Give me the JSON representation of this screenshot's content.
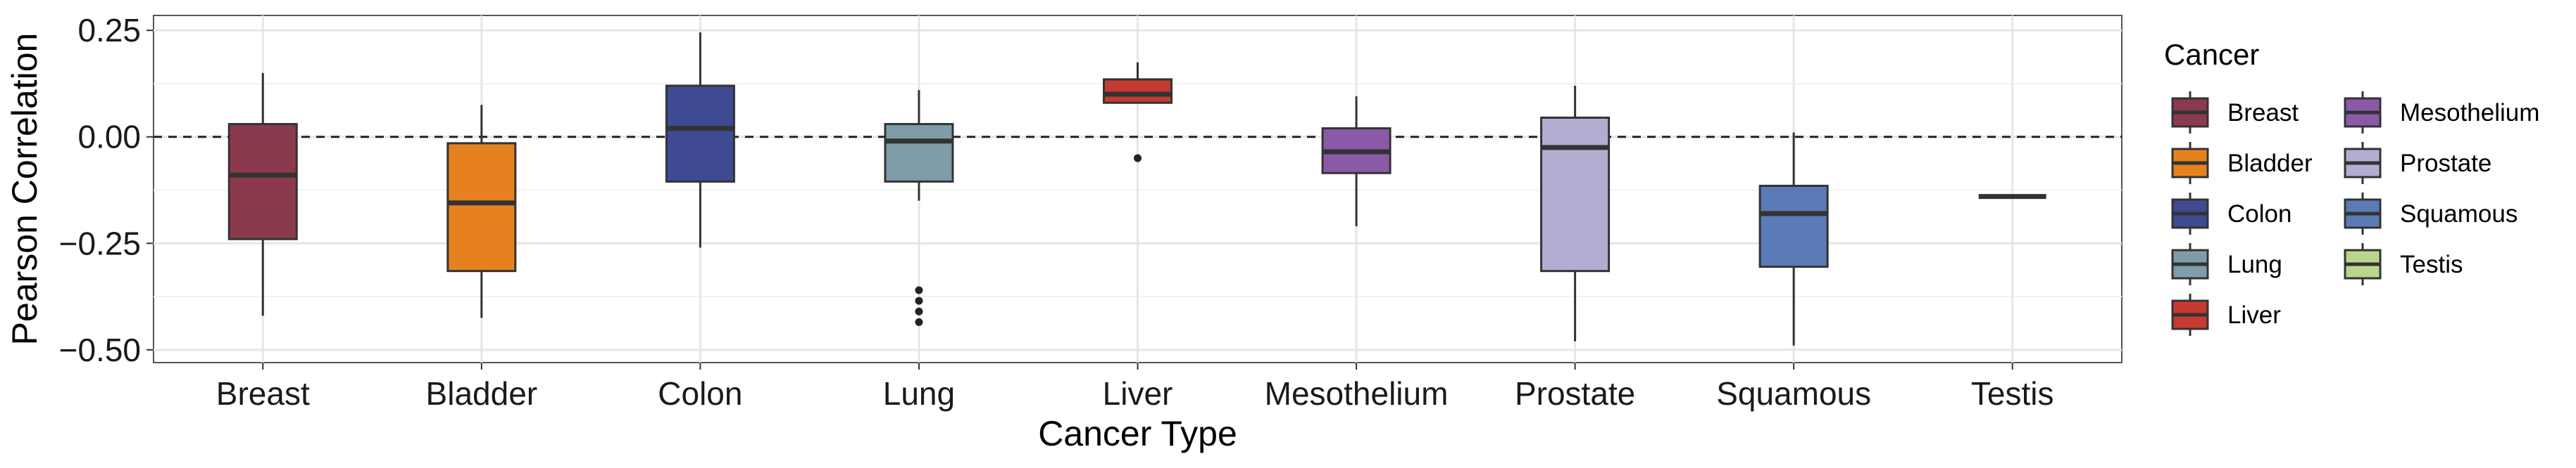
{
  "chart_data": {
    "type": "box",
    "title": "",
    "xlabel": "Cancer Type",
    "ylabel": "Pearson Correlation",
    "ylim": [
      -0.53,
      0.285
    ],
    "yticks": [
      0.25,
      0.0,
      -0.25,
      -0.5
    ],
    "ytick_labels": [
      "0.25",
      "0.00",
      "−0.25",
      "−0.50"
    ],
    "reference_line": 0.0,
    "grid": true,
    "legend": {
      "title": "Cancer",
      "placement": "right",
      "columns": 2
    },
    "categories": [
      "Breast",
      "Bladder",
      "Colon",
      "Lung",
      "Liver",
      "Mesothelium",
      "Prostate",
      "Squamous",
      "Testis"
    ],
    "series": [
      {
        "name": "Breast",
        "color": "#8B3A4E",
        "min": -0.42,
        "q1": -0.24,
        "median": -0.09,
        "q3": 0.03,
        "max": 0.15,
        "outliers": []
      },
      {
        "name": "Bladder",
        "color": "#E5821F",
        "min": -0.425,
        "q1": -0.315,
        "median": -0.155,
        "q3": -0.015,
        "max": 0.075,
        "outliers": []
      },
      {
        "name": "Colon",
        "color": "#3E4A91",
        "min": -0.26,
        "q1": -0.105,
        "median": 0.02,
        "q3": 0.12,
        "max": 0.245,
        "outliers": []
      },
      {
        "name": "Lung",
        "color": "#7E9DA9",
        "min": -0.15,
        "q1": -0.105,
        "median": -0.01,
        "q3": 0.03,
        "max": 0.11,
        "outliers": [
          -0.36,
          -0.385,
          -0.41,
          -0.435
        ]
      },
      {
        "name": "Liver",
        "color": "#C63A32",
        "min": 0.08,
        "q1": 0.08,
        "median": 0.1,
        "q3": 0.135,
        "max": 0.175,
        "outliers": [
          -0.05
        ]
      },
      {
        "name": "Mesothelium",
        "color": "#8A5AA8",
        "min": -0.21,
        "q1": -0.085,
        "median": -0.035,
        "q3": 0.02,
        "max": 0.095,
        "outliers": []
      },
      {
        "name": "Prostate",
        "color": "#B3AED1",
        "min": -0.48,
        "q1": -0.315,
        "median": -0.025,
        "q3": 0.045,
        "max": 0.12,
        "outliers": []
      },
      {
        "name": "Squamous",
        "color": "#5A7BB5",
        "min": -0.49,
        "q1": -0.305,
        "median": -0.18,
        "q3": -0.115,
        "max": 0.01,
        "outliers": []
      },
      {
        "name": "Testis",
        "color": "#B9D68E",
        "min": -0.14,
        "q1": -0.14,
        "median": -0.14,
        "q3": -0.14,
        "max": -0.14,
        "outliers": []
      }
    ]
  }
}
